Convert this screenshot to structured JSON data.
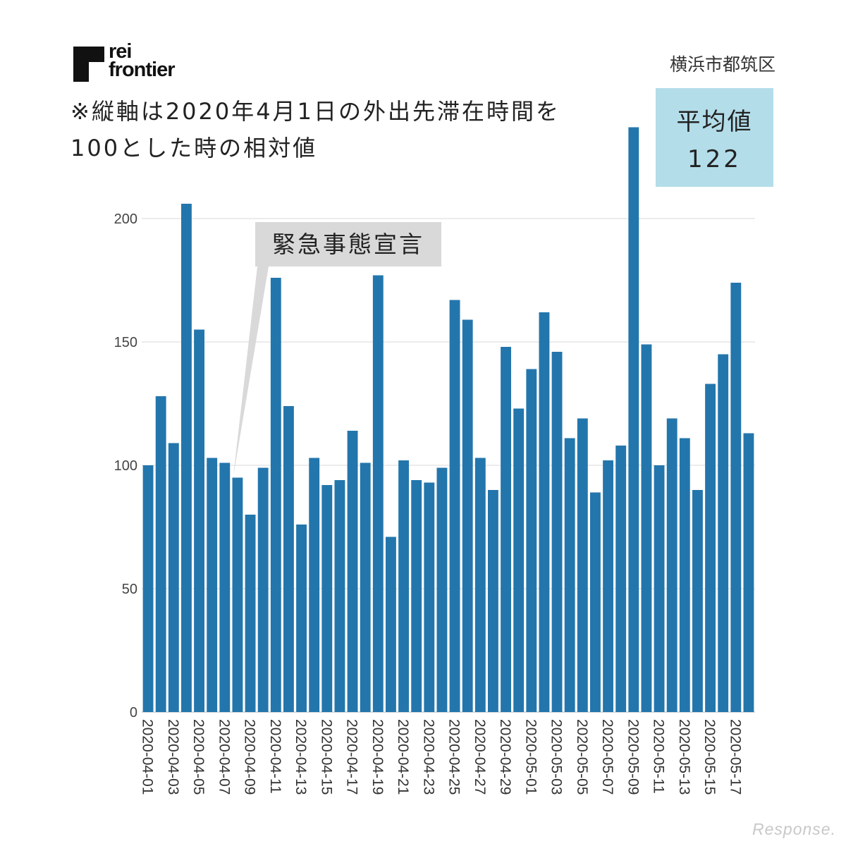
{
  "logo": {
    "text": "rei\nfrontier"
  },
  "region": "横浜市都筑区",
  "note": "※縦軸は2020年4月1日の外出先滞在時間を\n100とした時の相対値",
  "average": {
    "label": "平均値",
    "value": "122"
  },
  "callout": {
    "text": "緊急事態宣言",
    "target_date": "2020-04-08"
  },
  "watermark": "Response.",
  "colors": {
    "bar": "#2376ac",
    "avg_box": "#b3dde9",
    "callout": "#d9d9d9"
  },
  "chart_data": {
    "type": "bar",
    "title": "",
    "xlabel": "",
    "ylabel": "",
    "ylim": [
      0,
      220
    ],
    "yticks": [
      0,
      50,
      100,
      150,
      200
    ],
    "grid": true,
    "categories": [
      "2020-04-01",
      "2020-04-02",
      "2020-04-03",
      "2020-04-04",
      "2020-04-05",
      "2020-04-06",
      "2020-04-07",
      "2020-04-08",
      "2020-04-09",
      "2020-04-10",
      "2020-04-11",
      "2020-04-12",
      "2020-04-13",
      "2020-04-14",
      "2020-04-15",
      "2020-04-16",
      "2020-04-17",
      "2020-04-18",
      "2020-04-19",
      "2020-04-20",
      "2020-04-21",
      "2020-04-22",
      "2020-04-23",
      "2020-04-24",
      "2020-04-25",
      "2020-04-26",
      "2020-04-27",
      "2020-04-28",
      "2020-04-29",
      "2020-04-30",
      "2020-05-01",
      "2020-05-02",
      "2020-05-03",
      "2020-05-04",
      "2020-05-05",
      "2020-05-06",
      "2020-05-07",
      "2020-05-08",
      "2020-05-09",
      "2020-05-10",
      "2020-05-11",
      "2020-05-12",
      "2020-05-13",
      "2020-05-14",
      "2020-05-15",
      "2020-05-16",
      "2020-05-17",
      "2020-05-18"
    ],
    "xtick_labels": [
      "2020-04-01",
      "2020-04-03",
      "2020-04-05",
      "2020-04-07",
      "2020-04-09",
      "2020-04-11",
      "2020-04-13",
      "2020-04-15",
      "2020-04-17",
      "2020-04-19",
      "2020-04-21",
      "2020-04-23",
      "2020-04-25",
      "2020-04-27",
      "2020-04-29",
      "2020-05-01",
      "2020-05-03",
      "2020-05-05",
      "2020-05-07",
      "2020-05-09",
      "2020-05-11",
      "2020-05-13",
      "2020-05-15",
      "2020-05-17"
    ],
    "values": [
      100,
      128,
      109,
      206,
      155,
      103,
      101,
      95,
      80,
      99,
      176,
      124,
      76,
      103,
      92,
      94,
      114,
      101,
      177,
      71,
      102,
      94,
      93,
      99,
      167,
      159,
      103,
      90,
      148,
      123,
      139,
      162,
      146,
      111,
      119,
      89,
      102,
      108,
      237,
      149,
      100,
      119,
      111,
      90,
      133,
      145,
      174,
      113
    ]
  }
}
